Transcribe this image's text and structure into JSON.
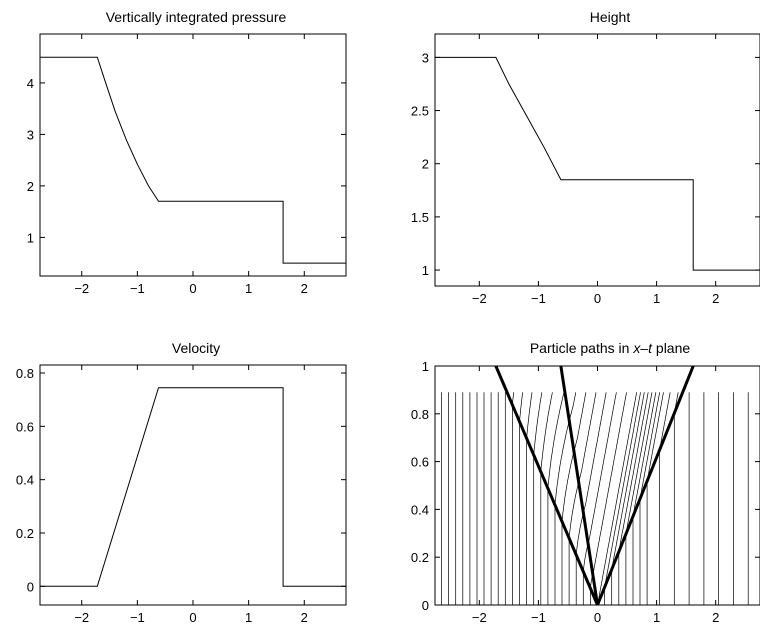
{
  "chart_data": [
    {
      "type": "line",
      "title": "Vertically integrated pressure",
      "xlim": [
        -2.75,
        2.75
      ],
      "ylim": [
        0.25,
        4.95
      ],
      "xticks": [
        -2,
        -1,
        0,
        1,
        2
      ],
      "xtick_labels": [
        "−2",
        "−1",
        "0",
        "1",
        "2"
      ],
      "yticks": [
        1,
        2,
        3,
        4
      ],
      "ytick_labels": [
        "1",
        "2",
        "3",
        "4"
      ],
      "series": [
        {
          "x": [
            -2.75,
            -1.72,
            -1.6,
            -1.4,
            -1.2,
            -1.0,
            -0.8,
            -0.62,
            1.62,
            1.62,
            2.75
          ],
          "y": [
            4.5,
            4.5,
            4.1,
            3.45,
            2.9,
            2.42,
            2.0,
            1.7,
            1.7,
            0.5,
            0.5
          ]
        }
      ]
    },
    {
      "type": "line",
      "title": "Height",
      "xlim": [
        -2.75,
        2.75
      ],
      "ylim": [
        0.85,
        3.22
      ],
      "xticks": [
        -2,
        -1,
        0,
        1,
        2
      ],
      "xtick_labels": [
        "−2",
        "−1",
        "0",
        "1",
        "2"
      ],
      "yticks": [
        1,
        1.5,
        2,
        2.5,
        3
      ],
      "ytick_labels": [
        "1",
        "1.5",
        "2",
        "2.5",
        "3"
      ],
      "series": [
        {
          "x": [
            -2.75,
            -1.72,
            -1.5,
            -1.2,
            -0.9,
            -0.62,
            1.62,
            1.62,
            2.75
          ],
          "y": [
            3.0,
            3.0,
            2.75,
            2.45,
            2.15,
            1.85,
            1.85,
            1.0,
            1.0
          ]
        }
      ]
    },
    {
      "type": "line",
      "title": "Velocity",
      "xlim": [
        -2.75,
        2.75
      ],
      "ylim": [
        -0.07,
        0.83
      ],
      "xticks": [
        -2,
        -1,
        0,
        1,
        2
      ],
      "xtick_labels": [
        "−2",
        "−1",
        "0",
        "1",
        "2"
      ],
      "yticks": [
        0,
        0.2,
        0.4,
        0.6,
        0.8
      ],
      "ytick_labels": [
        "0",
        "0.2",
        "0.4",
        "0.6",
        "0.8"
      ],
      "series": [
        {
          "x": [
            -2.75,
            -1.72,
            -0.62,
            1.62,
            1.62,
            2.75
          ],
          "y": [
            0,
            0,
            0.745,
            0.745,
            0,
            0
          ]
        }
      ]
    },
    {
      "type": "line",
      "title_pre": "Particle paths in ",
      "title_var": "x–t",
      "title_post": " plane",
      "xlim": [
        -2.75,
        2.75
      ],
      "ylim": [
        0,
        1
      ],
      "xticks": [
        -2,
        -1,
        0,
        1,
        2
      ],
      "xtick_labels": [
        "−2",
        "−1",
        "0",
        "1",
        "2"
      ],
      "yticks": [
        0,
        0.2,
        0.4,
        0.6,
        0.8,
        1
      ],
      "ytick_labels": [
        "0",
        "0.2",
        "0.4",
        "0.6",
        "0.8",
        "1"
      ],
      "t_end": 0.89,
      "particle_x0": [
        -2.64,
        -2.52,
        -2.4,
        -2.28,
        -2.16,
        -2.04,
        -1.92,
        -1.8,
        -1.68,
        -1.56,
        -1.44,
        -1.32,
        -1.2,
        -1.08,
        -0.96,
        -0.84,
        -0.72,
        -0.6,
        -0.48,
        -0.36,
        -0.24,
        -0.12,
        0.0,
        0.12,
        0.24,
        0.36,
        0.48,
        0.6,
        0.72,
        0.84,
        1.05,
        1.3,
        1.55,
        1.8,
        2.05,
        2.3,
        2.55
      ],
      "characteristics": [
        {
          "x": [
            0,
            -1.72
          ],
          "y": [
            0,
            1
          ]
        },
        {
          "x": [
            0,
            -0.62
          ],
          "y": [
            0,
            1
          ]
        },
        {
          "x": [
            0,
            1.62
          ],
          "y": [
            0,
            1
          ]
        }
      ]
    }
  ]
}
